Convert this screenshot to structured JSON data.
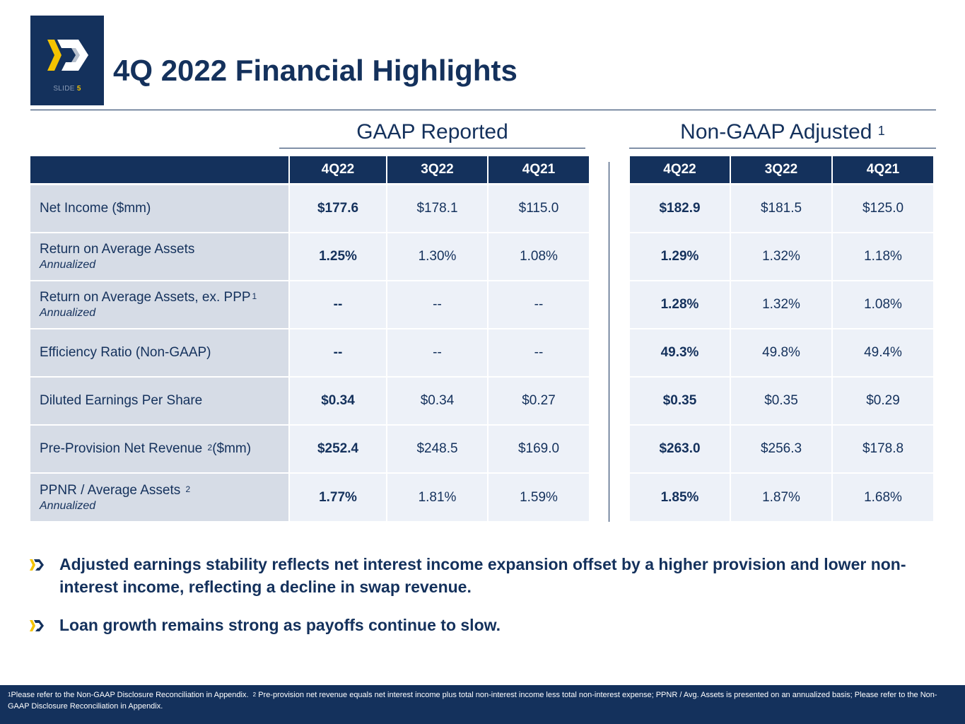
{
  "slide": {
    "label": "SLIDE",
    "number": "5"
  },
  "title": "4Q 2022 Financial Highlights",
  "sections": {
    "gaap": {
      "title": "GAAP Reported"
    },
    "non_gaap": {
      "title": "Non-GAAP Adjusted",
      "footnote": "1"
    }
  },
  "columns": [
    "4Q22",
    "3Q22",
    "4Q21"
  ],
  "rows": [
    {
      "label": "Net Income ($mm)",
      "sup": "",
      "sub": "",
      "gaap": [
        "$177.6",
        "$178.1",
        "$115.0"
      ],
      "non_gaap": [
        "$182.9",
        "$181.5",
        "$125.0"
      ]
    },
    {
      "label": "Return on Average Assets",
      "sup": "",
      "sub": "Annualized",
      "gaap": [
        "1.25%",
        "1.30%",
        "1.08%"
      ],
      "non_gaap": [
        "1.29%",
        "1.32%",
        "1.18%"
      ]
    },
    {
      "label": "Return on Average Assets, ex. PPP",
      "sup": "1",
      "sub": "Annualized",
      "gaap": [
        "--",
        "--",
        "--"
      ],
      "non_gaap": [
        "1.28%",
        "1.32%",
        "1.08%"
      ]
    },
    {
      "label": "Efficiency Ratio (Non-GAAP)",
      "sup": "",
      "sub": "",
      "gaap": [
        "--",
        "--",
        "--"
      ],
      "non_gaap": [
        "49.3%",
        "49.8%",
        "49.4%"
      ]
    },
    {
      "label": "Diluted Earnings Per Share",
      "sup": "",
      "sub": "",
      "gaap": [
        "$0.34",
        "$0.34",
        "$0.27"
      ],
      "non_gaap": [
        "$0.35",
        "$0.35",
        "$0.29"
      ]
    },
    {
      "label": "Pre-Provision Net Revenue",
      "sup": "2",
      "suffix": "($mm)",
      "sub": "",
      "gaap": [
        "$252.4",
        "$248.5",
        "$169.0"
      ],
      "non_gaap": [
        "$263.0",
        "$256.3",
        "$178.8"
      ]
    },
    {
      "label": "PPNR / Average Assets",
      "sup": "2",
      "sub": "Annualized",
      "gaap": [
        "1.77%",
        "1.81%",
        "1.59%"
      ],
      "non_gaap": [
        "1.85%",
        "1.87%",
        "1.68%"
      ]
    }
  ],
  "bullets": [
    "Adjusted earnings stability reflects net interest income expansion offset by a higher provision and lower non-interest income, reflecting a decline in swap revenue.",
    "Loan growth remains strong as payoffs continue to slow."
  ],
  "footer": {
    "note1_num": "1",
    "note1": "Please refer to the Non-GAAP Disclosure Reconciliation in Appendix.",
    "note2_num": "2",
    "note2": "Pre-provision net revenue equals net interest income plus total non-interest income less total non-interest expense; PPNR / Avg. Assets is presented on an annualized basis; Please refer to the Non-GAAP Disclosure Reconciliation in Appendix."
  },
  "colors": {
    "navy": "#14315c",
    "label_bg": "#d6dce6",
    "cell_bg": "#edf1f8",
    "accent_yellow": "#f5c400",
    "accent_gray": "#b8c0cc"
  }
}
